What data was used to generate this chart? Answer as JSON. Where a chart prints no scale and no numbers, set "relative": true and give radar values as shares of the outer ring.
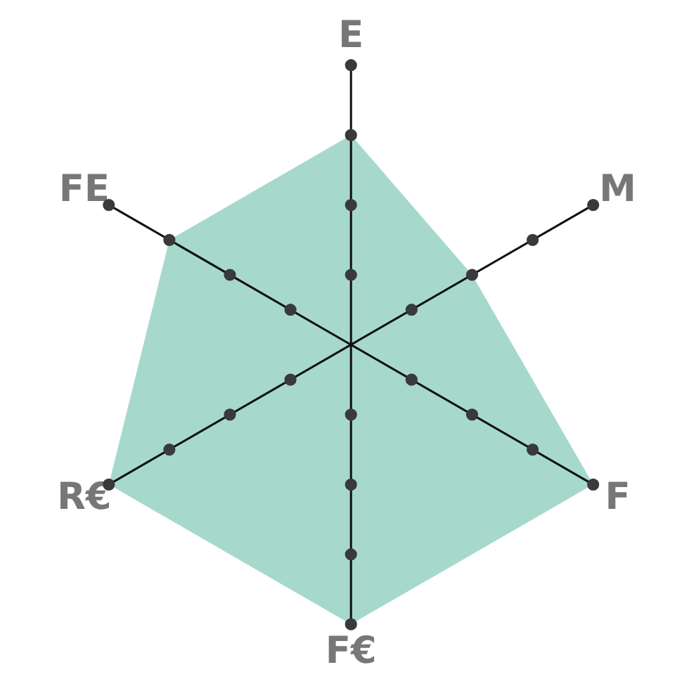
{
  "chart_data": {
    "type": "radar",
    "relative": true,
    "categories": [
      "E",
      "M",
      "F",
      "F€",
      "R€",
      "FE"
    ],
    "series": [
      {
        "color": "#a6d9cc",
        "values": [
          0.75,
          0.5,
          1,
          1,
          1,
          0.75
        ]
      }
    ]
  }
}
